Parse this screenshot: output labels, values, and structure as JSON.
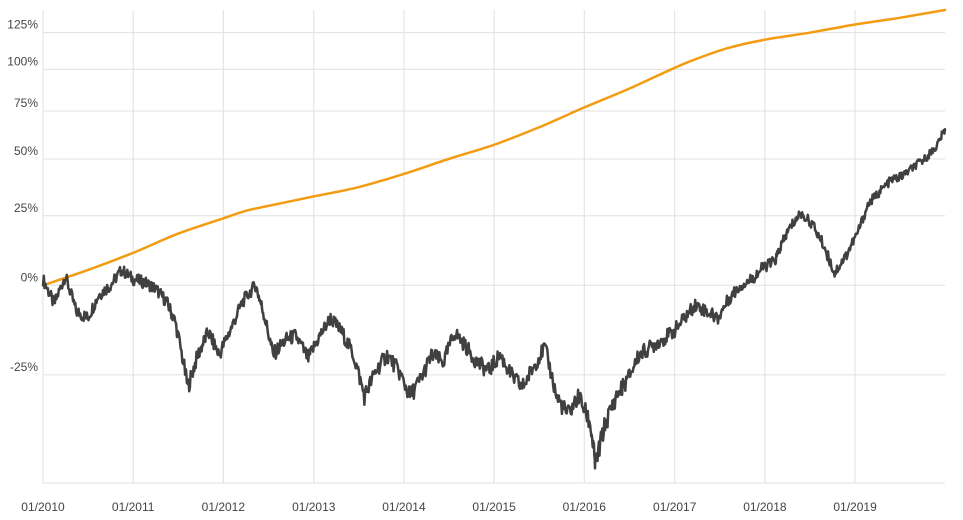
{
  "chart_data": {
    "type": "line",
    "title": "",
    "xlabel": "",
    "ylabel": "",
    "y_scale": "log",
    "grid": true,
    "legend": "none",
    "x_range": [
      "2010-01-01",
      "2019-12-31"
    ],
    "y_range_percent": [
      -47,
      142
    ],
    "x_ticks": [
      {
        "date": "2010-01-01",
        "label": "01/2010"
      },
      {
        "date": "2011-01-01",
        "label": "01/2011"
      },
      {
        "date": "2012-01-01",
        "label": "01/2012"
      },
      {
        "date": "2013-01-01",
        "label": "01/2013"
      },
      {
        "date": "2014-01-01",
        "label": "01/2014"
      },
      {
        "date": "2015-01-01",
        "label": "01/2015"
      },
      {
        "date": "2016-01-01",
        "label": "01/2016"
      },
      {
        "date": "2017-01-01",
        "label": "01/2017"
      },
      {
        "date": "2018-01-01",
        "label": "01/2018"
      },
      {
        "date": "2019-01-01",
        "label": "01/2019"
      }
    ],
    "y_ticks": [
      {
        "value": -25,
        "label": "-25%"
      },
      {
        "value": 0,
        "label": "0%"
      },
      {
        "value": 25,
        "label": "25%"
      },
      {
        "value": 50,
        "label": "50%"
      },
      {
        "value": 75,
        "label": "75%"
      },
      {
        "value": 100,
        "label": "100%"
      },
      {
        "value": 125,
        "label": "125%"
      }
    ],
    "series": [
      {
        "color": "#f39c12",
        "x": [
          "2010-01-01",
          "2010-07-01",
          "2011-01-01",
          "2011-07-01",
          "2012-01-01",
          "2012-04-01",
          "2012-07-01",
          "2013-01-01",
          "2013-07-01",
          "2014-01-01",
          "2014-07-01",
          "2015-01-01",
          "2015-07-01",
          "2016-01-01",
          "2016-07-01",
          "2017-01-01",
          "2017-04-01",
          "2017-08-01",
          "2018-01-01",
          "2018-07-01",
          "2019-01-01",
          "2019-07-01",
          "2019-12-31"
        ],
        "values": [
          0,
          5,
          11,
          18,
          24,
          27,
          29,
          33,
          37,
          43,
          50,
          57,
          66,
          77,
          88,
          101,
          107,
          114,
          120,
          125,
          131,
          136,
          142
        ]
      },
      {
        "color": "#404040",
        "x": [
          "2010-01-01",
          "2010-02-15",
          "2010-04-01",
          "2010-05-15",
          "2010-07-01",
          "2010-08-15",
          "2010-10-01",
          "2010-11-15",
          "2011-01-01",
          "2011-02-15",
          "2011-04-01",
          "2011-05-15",
          "2011-06-20",
          "2011-08-10",
          "2011-09-20",
          "2011-11-01",
          "2011-12-15",
          "2012-02-01",
          "2012-03-20",
          "2012-05-10",
          "2012-06-10",
          "2012-07-20",
          "2012-09-10",
          "2012-10-20",
          "2012-12-10",
          "2013-01-25",
          "2013-03-10",
          "2013-04-25",
          "2013-06-10",
          "2013-07-25",
          "2013-09-10",
          "2013-10-25",
          "2013-12-10",
          "2014-01-25",
          "2014-03-10",
          "2014-04-25",
          "2014-06-10",
          "2014-07-25",
          "2014-09-10",
          "2014-10-25",
          "2014-12-10",
          "2015-01-25",
          "2015-03-10",
          "2015-04-25",
          "2015-06-10",
          "2015-07-25",
          "2015-09-10",
          "2015-10-25",
          "2015-12-10",
          "2016-01-25",
          "2016-02-15",
          "2016-03-25",
          "2016-05-10",
          "2016-06-25",
          "2016-08-10",
          "2016-09-25",
          "2016-11-10",
          "2016-12-25",
          "2017-02-10",
          "2017-03-25",
          "2017-05-10",
          "2017-06-25",
          "2017-08-10",
          "2017-09-25",
          "2017-11-10",
          "2017-12-25",
          "2018-02-10",
          "2018-03-10",
          "2018-04-10",
          "2018-05-25",
          "2018-07-10",
          "2018-08-25",
          "2018-10-10",
          "2018-11-25",
          "2019-01-10",
          "2019-02-25",
          "2019-04-10",
          "2019-05-25",
          "2019-07-10",
          "2019-08-25",
          "2019-10-10",
          "2019-11-25",
          "2019-12-31"
        ],
        "values": [
          2,
          -6,
          3,
          -8,
          -10,
          -3,
          0,
          5,
          2,
          1,
          -1,
          -5,
          -11,
          -28,
          -20,
          -14,
          -20,
          -13,
          -5,
          0,
          -8,
          -20,
          -16,
          -15,
          -21,
          -15,
          -10,
          -14,
          -20,
          -30,
          -24,
          -20,
          -24,
          -30,
          -26,
          -20,
          -22,
          -14,
          -18,
          -22,
          -24,
          -20,
          -25,
          -28,
          -23,
          -18,
          -30,
          -34,
          -30,
          -36,
          -44,
          -36,
          -30,
          -26,
          -20,
          -18,
          -16,
          -14,
          -10,
          -6,
          -8,
          -10,
          -4,
          0,
          2,
          6,
          8,
          14,
          20,
          26,
          22,
          14,
          4,
          10,
          18,
          30,
          35,
          40,
          42,
          46,
          50,
          56,
          65
        ]
      }
    ]
  }
}
